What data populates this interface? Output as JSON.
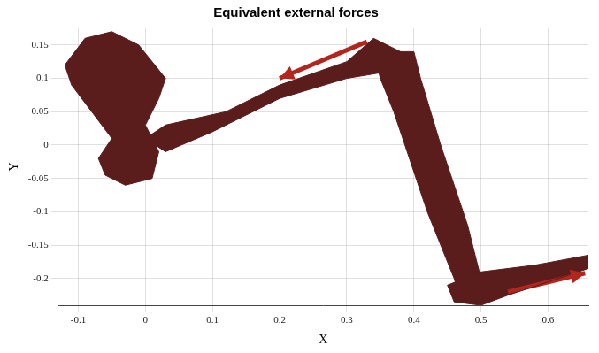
{
  "chart_data": {
    "type": "scatter",
    "title": "Equivalent external forces",
    "x_label": "X",
    "y_label": "Y",
    "xlim": [
      -0.13,
      0.66
    ],
    "ylim": [
      -0.24,
      0.175
    ],
    "xticks": [
      -0.1,
      0,
      0.1,
      0.2,
      0.3,
      0.4,
      0.5,
      0.6
    ],
    "yticks": [
      -0.2,
      -0.15,
      -0.1,
      -0.05,
      0,
      0.05,
      0.1,
      0.15
    ],
    "grid": true,
    "series": [
      {
        "type": "area",
        "color": "#5b1c1c",
        "x": [
          -0.12,
          -0.09,
          -0.05,
          -0.01,
          0.03,
          0.02,
          0.0,
          0.02,
          0.01,
          -0.03,
          -0.06,
          -0.07,
          -0.05,
          -0.08,
          -0.11
        ],
        "values": [
          0.12,
          0.16,
          0.17,
          0.15,
          0.1,
          0.07,
          0.03,
          -0.01,
          -0.05,
          -0.06,
          -0.045,
          -0.02,
          0.01,
          0.05,
          0.09
        ]
      },
      {
        "type": "area",
        "color": "#5b1c1c",
        "x": [
          0.0,
          0.03,
          0.12,
          0.2,
          0.3,
          0.34,
          0.38,
          0.36,
          0.3,
          0.2,
          0.1,
          0.03
        ],
        "values": [
          0.01,
          0.03,
          0.05,
          0.09,
          0.125,
          0.16,
          0.14,
          0.11,
          0.1,
          0.07,
          0.02,
          -0.01
        ]
      },
      {
        "type": "area",
        "color": "#5b1c1c",
        "x": [
          0.34,
          0.4,
          0.41,
          0.44,
          0.48,
          0.5,
          0.51,
          0.47,
          0.46,
          0.42,
          0.37,
          0.35
        ],
        "values": [
          0.14,
          0.14,
          0.1,
          0.0,
          -0.12,
          -0.2,
          -0.23,
          -0.235,
          -0.2,
          -0.1,
          0.05,
          0.1
        ]
      },
      {
        "type": "area",
        "color": "#5b1c1c",
        "x": [
          0.45,
          0.5,
          0.58,
          0.66,
          0.66,
          0.6,
          0.54,
          0.5,
          0.46
        ],
        "values": [
          -0.21,
          -0.19,
          -0.18,
          -0.165,
          -0.185,
          -0.205,
          -0.225,
          -0.24,
          -0.235
        ]
      },
      {
        "type": "arrow",
        "color": "#b3261e",
        "x": [
          0.33,
          0.2
        ],
        "values": [
          0.155,
          0.1
        ]
      },
      {
        "type": "arrow",
        "color": "#b3261e",
        "x": [
          0.54,
          0.655
        ],
        "values": [
          -0.22,
          -0.192
        ]
      }
    ]
  }
}
